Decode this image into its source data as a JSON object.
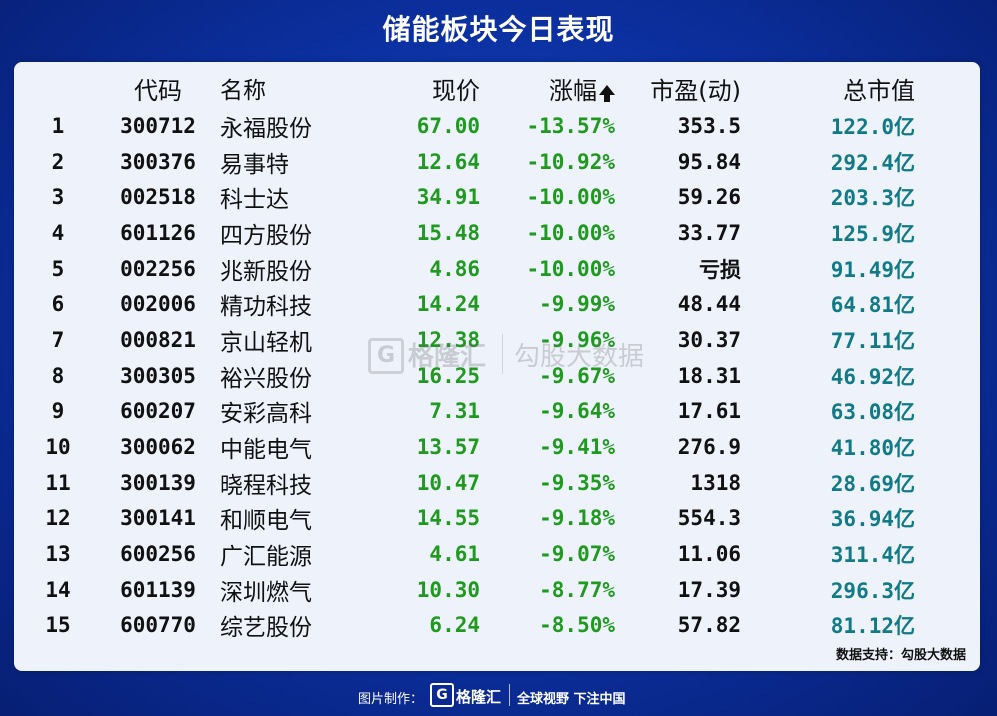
{
  "title": "储能板块今日表现",
  "headers": {
    "code": "代码",
    "name": "名称",
    "price": "现价",
    "change": "涨幅",
    "pe": "市盈(动)",
    "market_cap": "总市值"
  },
  "rows": [
    {
      "idx": "1",
      "code": "300712",
      "name": "永福股份",
      "price": "67.00",
      "change": "-13.57%",
      "pe": "353.5",
      "cap": "122.0亿"
    },
    {
      "idx": "2",
      "code": "300376",
      "name": "易事特",
      "price": "12.64",
      "change": "-10.92%",
      "pe": "95.84",
      "cap": "292.4亿"
    },
    {
      "idx": "3",
      "code": "002518",
      "name": "科士达",
      "price": "34.91",
      "change": "-10.00%",
      "pe": "59.26",
      "cap": "203.3亿"
    },
    {
      "idx": "4",
      "code": "601126",
      "name": "四方股份",
      "price": "15.48",
      "change": "-10.00%",
      "pe": "33.77",
      "cap": "125.9亿"
    },
    {
      "idx": "5",
      "code": "002256",
      "name": "兆新股份",
      "price": "4.86",
      "change": "-10.00%",
      "pe": "亏损",
      "cap": "91.49亿"
    },
    {
      "idx": "6",
      "code": "002006",
      "name": "精功科技",
      "price": "14.24",
      "change": "-9.99%",
      "pe": "48.44",
      "cap": "64.81亿"
    },
    {
      "idx": "7",
      "code": "000821",
      "name": "京山轻机",
      "price": "12.38",
      "change": "-9.96%",
      "pe": "30.37",
      "cap": "77.11亿"
    },
    {
      "idx": "8",
      "code": "300305",
      "name": "裕兴股份",
      "price": "16.25",
      "change": "-9.67%",
      "pe": "18.31",
      "cap": "46.92亿"
    },
    {
      "idx": "9",
      "code": "600207",
      "name": "安彩高科",
      "price": "7.31",
      "change": "-9.64%",
      "pe": "17.61",
      "cap": "63.08亿"
    },
    {
      "idx": "10",
      "code": "300062",
      "name": "中能电气",
      "price": "13.57",
      "change": "-9.41%",
      "pe": "276.9",
      "cap": "41.80亿"
    },
    {
      "idx": "11",
      "code": "300139",
      "name": "晓程科技",
      "price": "10.47",
      "change": "-9.35%",
      "pe": "1318",
      "cap": "28.69亿"
    },
    {
      "idx": "12",
      "code": "300141",
      "name": "和顺电气",
      "price": "14.55",
      "change": "-9.18%",
      "pe": "554.3",
      "cap": "36.94亿"
    },
    {
      "idx": "13",
      "code": "600256",
      "name": "广汇能源",
      "price": "4.61",
      "change": "-9.07%",
      "pe": "11.06",
      "cap": "311.4亿"
    },
    {
      "idx": "14",
      "code": "601139",
      "name": "深圳燃气",
      "price": "10.30",
      "change": "-8.77%",
      "pe": "17.39",
      "cap": "296.3亿"
    },
    {
      "idx": "15",
      "code": "600770",
      "name": "综艺股份",
      "price": "6.24",
      "change": "-8.50%",
      "pe": "57.82",
      "cap": "81.12亿"
    }
  ],
  "source": "数据支持：勾股大数据",
  "watermark": {
    "logo": "G",
    "brand": "格隆汇",
    "data": "勾股大数据"
  },
  "footer": {
    "label": "图片制作：",
    "logo": "G",
    "brand": "格隆汇",
    "slogan": "全球视野 下注中国"
  },
  "colors": {
    "down": "#1f9a1f",
    "cap": "#117a86",
    "background": "#0b2f9e",
    "panel": "#eef3fb"
  },
  "icons": {
    "sort": "sort-up-arrow-icon"
  }
}
